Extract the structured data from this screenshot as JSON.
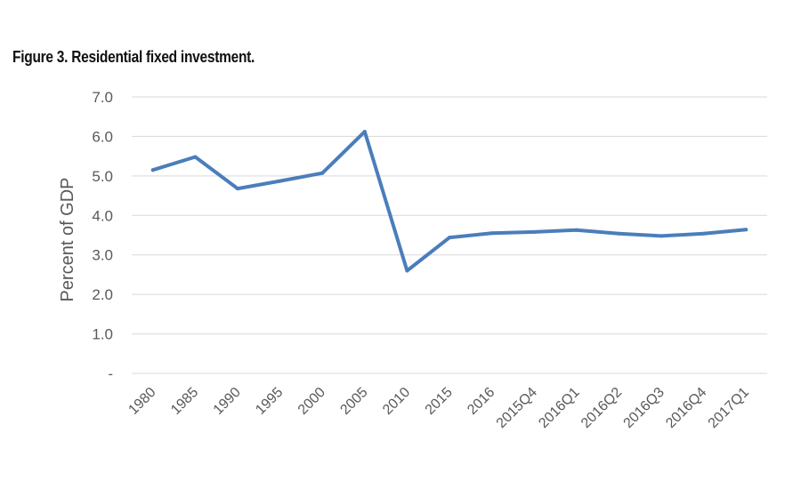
{
  "figure": {
    "title": "Figure 3. Residential fixed investment."
  },
  "chart_data": {
    "type": "line",
    "title": "Figure 3. Residential fixed investment.",
    "xlabel": "",
    "ylabel": "Percent of GDP",
    "categories": [
      "1980",
      "1985",
      "1990",
      "1995",
      "2000",
      "2005",
      "2010",
      "2015",
      "2016",
      "2015Q4",
      "2016Q1",
      "2016Q2",
      "2016Q3",
      "2016Q4",
      "2017Q1"
    ],
    "series": [
      {
        "name": "Residential fixed investment",
        "color": "#4a7ebb",
        "values": [
          5.15,
          5.48,
          4.68,
          4.87,
          5.07,
          6.12,
          2.6,
          3.44,
          3.55,
          3.58,
          3.63,
          3.54,
          3.48,
          3.54,
          3.64
        ]
      }
    ],
    "ylim": [
      0,
      7
    ],
    "yticks": [
      {
        "value": 0,
        "label": "-"
      },
      {
        "value": 1,
        "label": "1.0"
      },
      {
        "value": 2,
        "label": "2.0"
      },
      {
        "value": 3,
        "label": "3.0"
      },
      {
        "value": 4,
        "label": "4.0"
      },
      {
        "value": 5,
        "label": "5.0"
      },
      {
        "value": 6,
        "label": "6.0"
      },
      {
        "value": 7,
        "label": "7.0"
      }
    ],
    "grid": true,
    "legend": "none",
    "colors": {
      "line": "#4a7ebb",
      "grid": "#d9d9d9",
      "text": "#595959"
    }
  }
}
